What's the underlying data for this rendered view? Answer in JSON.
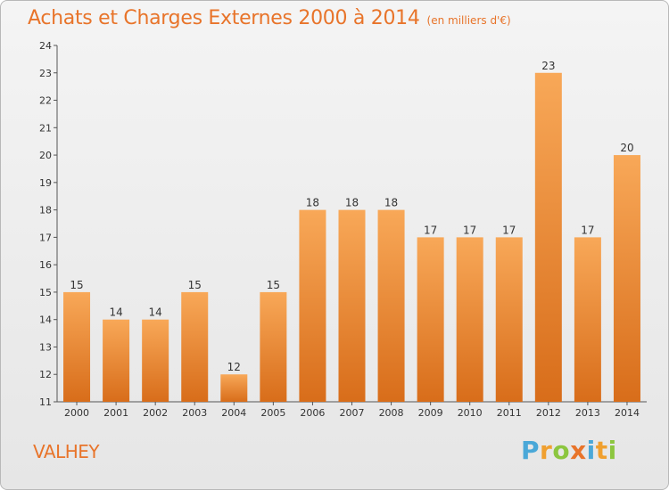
{
  "header": {
    "title": "Achats et Charges Externes 2000 à 2014",
    "unit": "(en milliers d'€)"
  },
  "footer": {
    "commune": "VALHEY",
    "logo": [
      {
        "ch": "P",
        "color": "#4aa8d8"
      },
      {
        "ch": "r",
        "color": "#f0a030"
      },
      {
        "ch": "o",
        "color": "#8cc63f"
      },
      {
        "ch": "x",
        "color": "#e8742a"
      },
      {
        "ch": "i",
        "color": "#4aa8d8"
      },
      {
        "ch": "t",
        "color": "#f0a030"
      },
      {
        "ch": "i",
        "color": "#8cc63f"
      }
    ]
  },
  "colors": {
    "bar_top": "#f8a858",
    "bar_bottom": "#d86d1a",
    "title": "#e8742a",
    "axis": "#555555",
    "label": "#333333"
  },
  "chart_data": {
    "type": "bar",
    "title": "Achats et Charges Externes 2000 à 2014",
    "subtitle": "(en milliers d'€)",
    "xlabel": "",
    "ylabel": "",
    "categories": [
      "2000",
      "2001",
      "2002",
      "2003",
      "2004",
      "2005",
      "2006",
      "2007",
      "2008",
      "2009",
      "2010",
      "2011",
      "2012",
      "2013",
      "2014"
    ],
    "values": [
      15,
      14,
      14,
      15,
      12,
      15,
      18,
      18,
      18,
      17,
      17,
      17,
      23,
      17,
      20
    ],
    "ylim": [
      11,
      24
    ],
    "yticks": [
      11,
      12,
      13,
      14,
      15,
      16,
      17,
      18,
      19,
      20,
      21,
      22,
      23,
      24
    ],
    "grid": false,
    "legend": "none"
  }
}
